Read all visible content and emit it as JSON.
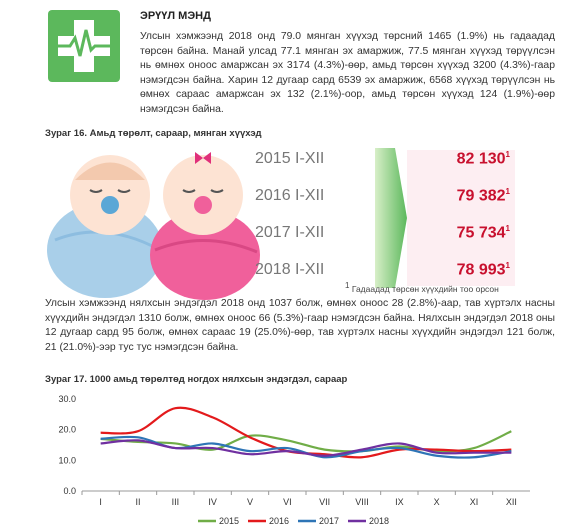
{
  "header": {
    "title": "ЭРҮҮЛ МЭНД",
    "text": "Улсын хэмжээнд 2018 онд 79.0 мянган хүүхэд төрсний 1465 (1.9%) нь гадаадад төрсөн байна. Манай улсад 77.1 мянган эх амаржиж, 77.5 мянган хүүхэд төрүүлсэн нь өмнөх оноос амаржсан эх 3174 (4.3%)-өөр, амьд төрсөн хүүхэд 3200 (4.3%)-гаар нэмэгдсэн байна. Харин 12 дугаар сард 6539 эх амаржиж, 6568 хүүхэд төрүүлсэн нь өмнөх сараас амаржсан эх 132 (2.1%)-оор, амьд төрсөн хүүхэд 124 (1.9%)-өөр нэмэгдсэн байна."
  },
  "figure16": {
    "caption": "Зураг  16. Амьд төрөлт, сараар, мянган хүүхэд",
    "rows": [
      {
        "period": "2015 I-XII",
        "value": "82 130",
        "note": "1"
      },
      {
        "period": "2016 I-XII",
        "value": "79 382",
        "note": "1"
      },
      {
        "period": "2017 I-XII",
        "value": "75 734",
        "note": "1"
      },
      {
        "period": "2018 I-XII",
        "value": "78 993",
        "note": "1"
      }
    ],
    "footnote": {
      "mark": "1",
      "text": " Гадаадад төрсөн хүүхдийн тоо орсон"
    }
  },
  "paragraph2": "Улсын хэмжээнд нялхсын эндэгдэл 2018 онд 1037 болж, өмнөх оноос 28 (2.8%)-аар, тав хүртэлх насны хүүхдийн эндэгдэл 1310 болж, өмнөх оноос 66 (5.3%)-гаар нэмэгдсэн байна. Нялхсын эндэгдэл 2018 оны 12 дугаар сард 95 болж, өмнөх сараас 19 (25.0%)-өөр, тав хүртэлх насны хүүхдийн эндэгдэл 121 болж, 21 (21.0%)-ээр тус тус нэмэгдсэн байна.",
  "chart_data": {
    "type": "line",
    "title": "Зураг 17. 1000 амьд төрөлтөд ногдох нялхсын эндэгдэл, сараар",
    "categories": [
      "I",
      "II",
      "III",
      "IV",
      "V",
      "VI",
      "VII",
      "VIII",
      "IX",
      "X",
      "XI",
      "XII"
    ],
    "ylim": [
      0,
      30
    ],
    "yticks": [
      {
        "value": 0,
        "label": "0.0"
      },
      {
        "value": 10,
        "label": "10.0"
      },
      {
        "value": 20,
        "label": "20.0"
      },
      {
        "value": 30,
        "label": "30.0"
      }
    ],
    "series": [
      {
        "name": "2015",
        "color": "#70ad47",
        "values": [
          17,
          16,
          15.5,
          13.5,
          18,
          16.5,
          13.5,
          13,
          14.5,
          13,
          14,
          19.5
        ]
      },
      {
        "name": "2016",
        "color": "#e31a1c",
        "values": [
          19,
          19.5,
          27,
          24,
          17.5,
          13,
          12,
          11,
          13.5,
          13.5,
          13,
          13.5
        ]
      },
      {
        "name": "2017",
        "color": "#2e75b6",
        "values": [
          17,
          17.5,
          14,
          15.5,
          13,
          14,
          11,
          13,
          14,
          11.5,
          11,
          13
        ]
      },
      {
        "name": "2018",
        "color": "#7030a0",
        "values": [
          15.5,
          16.5,
          14,
          14,
          12,
          13,
          11.5,
          13.5,
          15.5,
          12.5,
          12.5,
          12.5
        ]
      }
    ]
  }
}
